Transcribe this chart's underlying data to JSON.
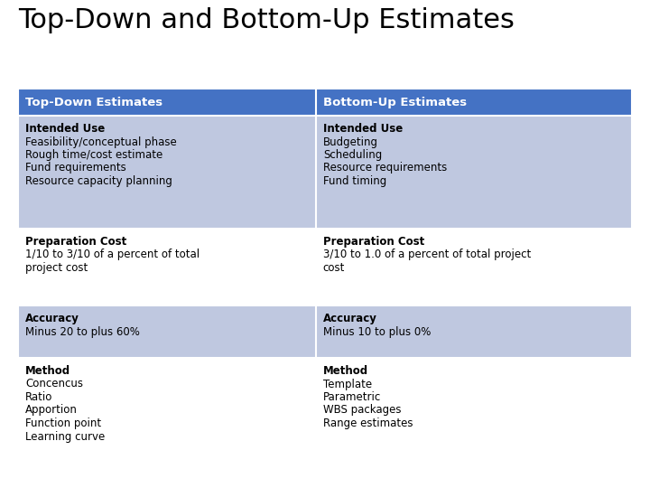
{
  "title": "Top-Down and Bottom-Up Estimates",
  "title_fontsize": 22,
  "title_color": "#000000",
  "background_color": "#ffffff",
  "header_bg_color": "#4472C4",
  "header_text_color": "#ffffff",
  "header_fontsize": 9.5,
  "row_odd_bg": "#BFC8E0",
  "row_even_bg": "#ffffff",
  "cell_fontsize": 8.5,
  "cell_bold_fontsize": 8.5,
  "columns": [
    "Top-Down Estimates",
    "Bottom-Up Estimates"
  ],
  "rows": [
    {
      "left_bold": "Intended Use",
      "left_content": [
        "Feasibility/conceptual phase",
        "Rough time/cost estimate",
        "Fund requirements",
        "Resource capacity planning"
      ],
      "right_bold": "Intended Use",
      "right_content": [
        "Budgeting",
        "Scheduling",
        "Resource requirements",
        "Fund timing"
      ],
      "bg": "#BFC8E0"
    },
    {
      "left_bold": "Preparation Cost",
      "left_content": [
        "1/10 to 3/10 of a percent of total",
        "project cost"
      ],
      "right_bold": "Preparation Cost",
      "right_content": [
        "3/10 to 1.0 of a percent of total project",
        "cost"
      ],
      "bg": "#ffffff"
    },
    {
      "left_bold": "Accuracy",
      "left_content": [
        "Minus 20 to plus 60%"
      ],
      "right_bold": "Accuracy",
      "right_content": [
        "Minus 10 to plus 0%"
      ],
      "bg": "#BFC8E0"
    },
    {
      "left_bold": "Method",
      "left_content": [
        "Concencus",
        "Ratio",
        "Apportion",
        "Function point",
        "Learning curve"
      ],
      "right_bold": "Method",
      "right_content": [
        "Template",
        "Parametric",
        "WBS packages",
        "Range estimates"
      ],
      "bg": "#ffffff"
    }
  ],
  "fig_width": 7.2,
  "fig_height": 5.4,
  "dpi": 100
}
